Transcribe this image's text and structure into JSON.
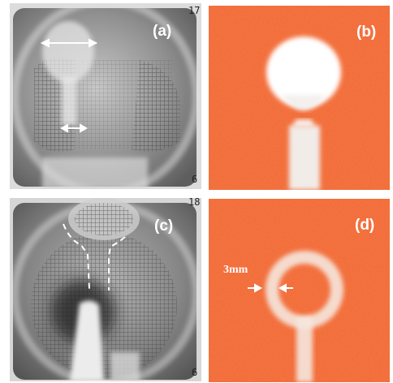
{
  "panels": {
    "a": {
      "label": "(a)",
      "corner_top": "17",
      "corner_bottom": "6"
    },
    "b": {
      "label": "(b)"
    },
    "c": {
      "label": "(c)",
      "corner_top": "18",
      "corner_bottom": "6"
    },
    "d": {
      "label": "(d)",
      "dimension": "3mm"
    }
  },
  "colors": {
    "orange_field": "#f26a35",
    "photo_gray": "#9a9a9a",
    "white_marks": "#ffffff"
  }
}
